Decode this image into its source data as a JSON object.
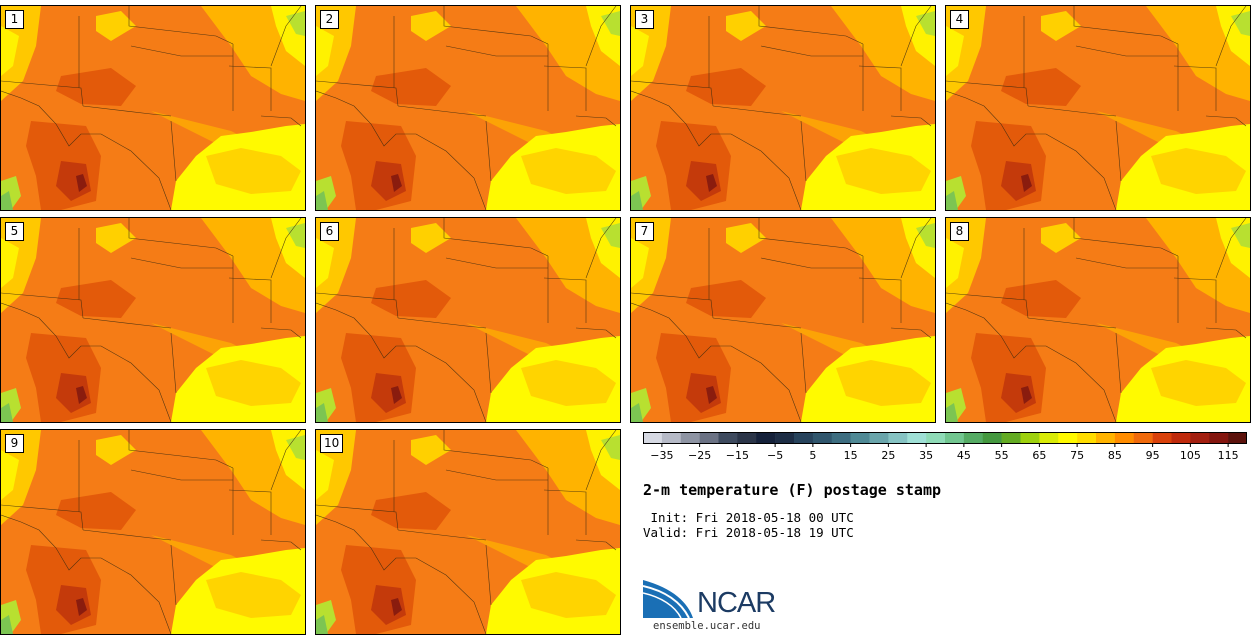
{
  "stamps": [
    {
      "label": "1"
    },
    {
      "label": "2"
    },
    {
      "label": "3"
    },
    {
      "label": "4"
    },
    {
      "label": "5"
    },
    {
      "label": "6"
    },
    {
      "label": "7"
    },
    {
      "label": "8"
    },
    {
      "label": "9"
    },
    {
      "label": "10"
    }
  ],
  "colorbar": {
    "tick_labels": [
      "−35",
      "−25",
      "−15",
      "−5",
      "5",
      "15",
      "25",
      "35",
      "45",
      "55",
      "65",
      "75",
      "85",
      "95",
      "105",
      "115"
    ],
    "colors": [
      "#d6d9e3",
      "#b6bac7",
      "#8e94a3",
      "#6b7284",
      "#3e4a5e",
      "#2b3548",
      "#15213a",
      "#1d2d45",
      "#27435c",
      "#30566d",
      "#3d6d80",
      "#4f8995",
      "#6aa5ab",
      "#86c3c3",
      "#9fe0d6",
      "#8fdbb7",
      "#72c690",
      "#55ab64",
      "#44983f",
      "#63ab23",
      "#9ed10e",
      "#d9eb07",
      "#fffa00",
      "#ffdd00",
      "#ffb300",
      "#ff8c00",
      "#f06a0c",
      "#d9410b",
      "#bf2a0c",
      "#a31f10",
      "#84160f",
      "#5c120c"
    ]
  },
  "title": "2-m temperature (F) postage stamp",
  "init_line": " Init: Fri 2018-05-18 00 UTC",
  "valid_line": "Valid: Fri 2018-05-18 19 UTC",
  "logo": {
    "name": "NCAR",
    "url": "ensemble.ucar.edu"
  }
}
